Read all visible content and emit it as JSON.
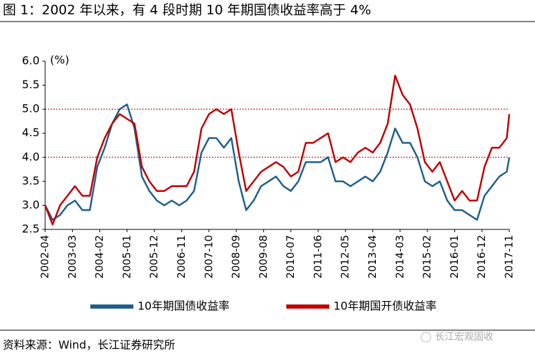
{
  "chart_data": {
    "type": "line",
    "title": "图 1：2002 年以来，有 4 段时期 10 年期国债收益率高于 4%",
    "y_label": "(%)",
    "source": "资料来源：Wind，长江证券研究所",
    "watermark": "长江宏观固收",
    "x": [
      "2002-04",
      "2002-07",
      "2002-10",
      "2003-01",
      "2003-04",
      "2003-07",
      "2003-10",
      "2004-01",
      "2004-04",
      "2004-07",
      "2004-10",
      "2005-01",
      "2005-04",
      "2005-07",
      "2005-10",
      "2006-01",
      "2006-04",
      "2006-07",
      "2006-10",
      "2007-01",
      "2007-04",
      "2007-07",
      "2007-10",
      "2008-01",
      "2008-04",
      "2008-07",
      "2008-10",
      "2009-01",
      "2009-04",
      "2009-07",
      "2009-10",
      "2010-01",
      "2010-04",
      "2010-07",
      "2010-10",
      "2011-01",
      "2011-04",
      "2011-07",
      "2011-10",
      "2012-01",
      "2012-04",
      "2012-07",
      "2012-10",
      "2013-01",
      "2013-04",
      "2013-07",
      "2013-10",
      "2014-01",
      "2014-04",
      "2014-07",
      "2014-10",
      "2015-01",
      "2015-04",
      "2015-07",
      "2015-10",
      "2016-01",
      "2016-04",
      "2016-07",
      "2016-10",
      "2017-01",
      "2017-04",
      "2017-07",
      "2017-10",
      "2017-11"
    ],
    "xticks": [
      "2002-04",
      "2003-03",
      "2004-02",
      "2005-01",
      "2005-12",
      "2006-11",
      "2007-10",
      "2008-09",
      "2009-08",
      "2010-07",
      "2011-06",
      "2012-05",
      "2013-04",
      "2014-03",
      "2015-02",
      "2016-01",
      "2016-12",
      "2017-11"
    ],
    "series": [
      {
        "name": "10年期国债收益率",
        "color": "#1f5f8b",
        "values": [
          3.0,
          2.7,
          2.8,
          3.0,
          3.1,
          2.9,
          2.9,
          3.8,
          4.2,
          4.7,
          5.0,
          5.1,
          4.6,
          3.6,
          3.3,
          3.1,
          3.0,
          3.1,
          3.0,
          3.1,
          3.3,
          4.1,
          4.4,
          4.4,
          4.2,
          4.4,
          3.5,
          2.9,
          3.1,
          3.4,
          3.5,
          3.6,
          3.4,
          3.3,
          3.5,
          3.9,
          3.9,
          3.9,
          4.0,
          3.5,
          3.5,
          3.4,
          3.5,
          3.6,
          3.5,
          3.7,
          4.1,
          4.6,
          4.3,
          4.3,
          4.0,
          3.5,
          3.4,
          3.5,
          3.1,
          2.9,
          2.9,
          2.8,
          2.7,
          3.2,
          3.4,
          3.6,
          3.7,
          4.0
        ]
      },
      {
        "name": "10年期国开债收益率",
        "color": "#c00000",
        "values": [
          3.0,
          2.6,
          3.0,
          3.2,
          3.4,
          3.2,
          3.2,
          4.0,
          4.4,
          4.7,
          4.9,
          4.8,
          4.7,
          3.8,
          3.5,
          3.3,
          3.3,
          3.4,
          3.4,
          3.4,
          3.7,
          4.6,
          4.9,
          5.0,
          4.9,
          5.0,
          4.1,
          3.3,
          3.5,
          3.7,
          3.8,
          3.9,
          3.8,
          3.6,
          3.7,
          4.3,
          4.3,
          4.4,
          4.5,
          3.9,
          4.0,
          3.9,
          4.1,
          4.2,
          4.1,
          4.3,
          4.7,
          5.7,
          5.3,
          5.1,
          4.6,
          3.9,
          3.7,
          3.9,
          3.5,
          3.1,
          3.3,
          3.1,
          3.1,
          3.8,
          4.2,
          4.2,
          4.4,
          4.9
        ]
      }
    ],
    "hlines": [
      5,
      4
    ],
    "hline_color": "#e00000",
    "ylim": [
      2.5,
      6
    ],
    "yticks": [
      {
        "value": 2.5,
        "label": "2.5"
      },
      {
        "value": 3,
        "label": "3.0"
      },
      3.5,
      {
        "value": 4,
        "label": "4.0"
      },
      4.5,
      {
        "value": 5,
        "label": "5.0"
      },
      5.5,
      {
        "value": 6,
        "label": "6.0"
      }
    ]
  }
}
